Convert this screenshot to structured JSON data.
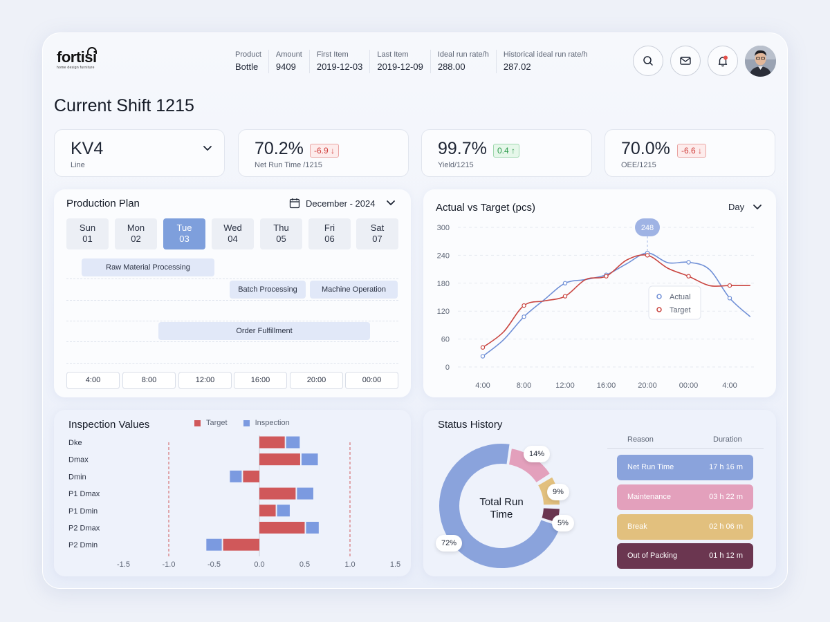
{
  "brand": {
    "name": "fortisi",
    "tagline": "home design furniture"
  },
  "header": {
    "meta": [
      {
        "label": "Product",
        "value": "Bottle"
      },
      {
        "label": "Amount",
        "value": "9409"
      },
      {
        "label": "First Item",
        "value": "2019-12-03"
      },
      {
        "label": "Last Item",
        "value": "2019-12-09"
      },
      {
        "label": "Ideal run rate/h",
        "value": "288.00"
      },
      {
        "label": "Historical ideal run rate/h",
        "value": "287.02"
      }
    ],
    "icons": [
      "search-icon",
      "mail-icon",
      "bell-icon"
    ]
  },
  "page_title": "Current Shift 1215",
  "kpis": {
    "line": {
      "value": "KV4",
      "label": "Line"
    },
    "net_run_time": {
      "value": "70.2%",
      "delta": "-6.9 ↓",
      "label": "Net Run Time /1215"
    },
    "yield": {
      "value": "99.7%",
      "delta": "0.4 ↑",
      "label": "Yield/1215"
    },
    "oee": {
      "value": "70.0%",
      "delta": "-6.6 ↓",
      "label": "OEE/1215"
    }
  },
  "colors": {
    "accent": "#7e9fdc",
    "actual": "#6f8fd6",
    "target": "#c9443f",
    "inspection": "#7b9ae0",
    "target_bar": "#d0585a"
  },
  "production_plan": {
    "title": "Production Plan",
    "month": "December - 2024",
    "days": [
      {
        "name": "Sun",
        "num": "01"
      },
      {
        "name": "Mon",
        "num": "02"
      },
      {
        "name": "Tue",
        "num": "03"
      },
      {
        "name": "Wed",
        "num": "04"
      },
      {
        "name": "Thu",
        "num": "05"
      },
      {
        "name": "Fri",
        "num": "06"
      },
      {
        "name": "Sat",
        "num": "07"
      }
    ],
    "selected_day": "Tue",
    "tasks": [
      "Raw Material Processing",
      "Batch Processing",
      "Machine Operation",
      "Order Fulfillment"
    ],
    "times": [
      "4:00",
      "8:00",
      "12:00",
      "16:00",
      "20:00",
      "00:00"
    ]
  },
  "actual_vs_target": {
    "title": "Actual vs Target (pcs)",
    "period": "Day",
    "tooltip": "248",
    "legend": [
      "Actual",
      "Target"
    ]
  },
  "inspection": {
    "title": "Inspection Values",
    "legend": [
      "Target",
      "Inspection"
    ]
  },
  "status_history": {
    "title": "Status History",
    "center_label": "Total Run Time",
    "headers": {
      "reason": "Reason",
      "duration": "Duration"
    },
    "rows": [
      {
        "reason": "Net Run Time",
        "duration": "17 h 16 m",
        "color": "#8aa3dc"
      },
      {
        "reason": "Maintenance",
        "duration": "03 h 22 m",
        "color": "#e3a0bc"
      },
      {
        "reason": "Break",
        "duration": "02 h 06 m",
        "color": "#e2c07e"
      },
      {
        "reason": "Out of Packing",
        "duration": "01 h 12 m",
        "color": "#6b3650"
      }
    ]
  },
  "chart_data": [
    {
      "type": "line",
      "x": [
        "4:00",
        "8:00",
        "12:00",
        "16:00",
        "20:00",
        "00:00",
        "4:00"
      ],
      "ylim": [
        0,
        300
      ],
      "yticks": [
        0,
        60,
        120,
        180,
        240,
        300
      ],
      "series": [
        {
          "name": "Actual",
          "points": [
            [
              0,
              23
            ],
            [
              0.5,
              58
            ],
            [
              1,
              108
            ],
            [
              1.5,
              145
            ],
            [
              2,
              180
            ],
            [
              2.5,
              188
            ],
            [
              3,
              198
            ],
            [
              3.5,
              222
            ],
            [
              4,
              245
            ],
            [
              4.5,
              224
            ],
            [
              5,
              225
            ],
            [
              5.5,
              210
            ],
            [
              6,
              148
            ],
            [
              6.5,
              108
            ]
          ]
        },
        {
          "name": "Target",
          "points": [
            [
              0,
              42
            ],
            [
              0.5,
              75
            ],
            [
              1,
              132
            ],
            [
              1.5,
              142
            ],
            [
              2,
              152
            ],
            [
              2.5,
              188
            ],
            [
              3,
              195
            ],
            [
              3.5,
              230
            ],
            [
              4,
              240
            ],
            [
              4.5,
              212
            ],
            [
              5,
              195
            ],
            [
              5.5,
              175
            ],
            [
              6,
              175
            ],
            [
              6.5,
              175
            ]
          ]
        }
      ]
    },
    {
      "type": "bar",
      "categories": [
        "Dke",
        "Dmax",
        "Dmin",
        "P1 Dmax",
        "P1 Dmin",
        "P2 Dmax",
        "P2 Dmin"
      ],
      "xlim": [
        -1.5,
        1.5
      ],
      "xticks": [
        "-1.5",
        "-1.0",
        "-0.5",
        "0.0",
        "0.5",
        "1.0",
        "1.5"
      ],
      "reference_lines": [
        -1.0,
        1.0
      ],
      "series": [
        {
          "name": "Target",
          "values": [
            0.28,
            0.45,
            -0.18,
            0.4,
            0.18,
            0.5,
            -0.4
          ]
        },
        {
          "name": "Inspection",
          "values": [
            0.15,
            0.18,
            -0.13,
            0.18,
            0.14,
            0.14,
            -0.17
          ]
        }
      ]
    },
    {
      "type": "pie",
      "labels": [
        "Net Run Time",
        "Maintenance",
        "Break",
        "Out of Packing"
      ],
      "values": [
        72,
        14,
        9,
        5
      ],
      "value_labels": [
        "72%",
        "14%",
        "9%",
        "5%"
      ]
    }
  ]
}
